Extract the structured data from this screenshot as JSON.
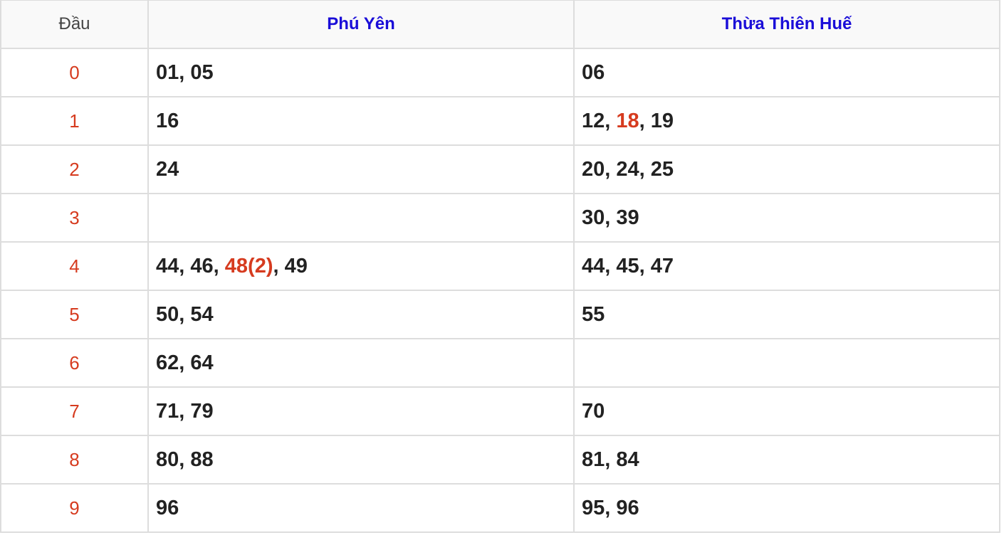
{
  "colors": {
    "accent_red": "#d63b1f",
    "header_blue": "#1a0dd8",
    "border": "#dddddd"
  },
  "headers": [
    "Đầu",
    "Phú Yên",
    "Thừa Thiên Huế"
  ],
  "rows": [
    {
      "dau": "0",
      "cols": [
        [
          {
            "t": "01"
          },
          {
            "t": "05"
          }
        ],
        [
          {
            "t": "06"
          }
        ]
      ]
    },
    {
      "dau": "1",
      "cols": [
        [
          {
            "t": "16"
          }
        ],
        [
          {
            "t": "12"
          },
          {
            "t": "18",
            "hot": true
          },
          {
            "t": "19"
          }
        ]
      ]
    },
    {
      "dau": "2",
      "cols": [
        [
          {
            "t": "24"
          }
        ],
        [
          {
            "t": "20"
          },
          {
            "t": "24"
          },
          {
            "t": "25"
          }
        ]
      ]
    },
    {
      "dau": "3",
      "cols": [
        [],
        [
          {
            "t": "30"
          },
          {
            "t": "39"
          }
        ]
      ]
    },
    {
      "dau": "4",
      "cols": [
        [
          {
            "t": "44"
          },
          {
            "t": "46"
          },
          {
            "t": "48(2)",
            "hot": true
          },
          {
            "t": "49"
          }
        ],
        [
          {
            "t": "44"
          },
          {
            "t": "45"
          },
          {
            "t": "47"
          }
        ]
      ]
    },
    {
      "dau": "5",
      "cols": [
        [
          {
            "t": "50"
          },
          {
            "t": "54"
          }
        ],
        [
          {
            "t": "55"
          }
        ]
      ]
    },
    {
      "dau": "6",
      "cols": [
        [
          {
            "t": "62"
          },
          {
            "t": "64"
          }
        ],
        []
      ]
    },
    {
      "dau": "7",
      "cols": [
        [
          {
            "t": "71"
          },
          {
            "t": "79"
          }
        ],
        [
          {
            "t": "70"
          }
        ]
      ]
    },
    {
      "dau": "8",
      "cols": [
        [
          {
            "t": "80"
          },
          {
            "t": "88"
          }
        ],
        [
          {
            "t": "81"
          },
          {
            "t": "84"
          }
        ]
      ]
    },
    {
      "dau": "9",
      "cols": [
        [
          {
            "t": "96"
          }
        ],
        [
          {
            "t": "95"
          },
          {
            "t": "96"
          }
        ]
      ]
    }
  ],
  "separator": ", "
}
